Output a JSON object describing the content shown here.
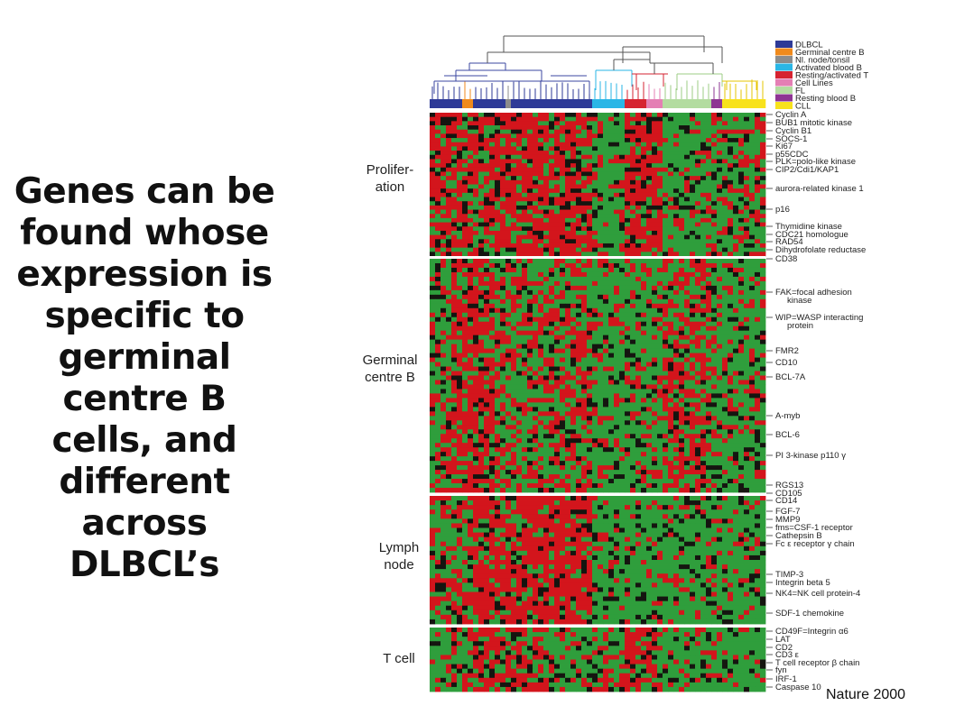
{
  "caption": "Genes can be found whose expression is specific to germinal centre B cells, and different across DLBCL’s",
  "credit": "Nature 2000",
  "legend": [
    {
      "label": "DLBCL",
      "color": "#2e3a97"
    },
    {
      "label": "Germinal centre B",
      "color": "#f08a1c"
    },
    {
      "label": "Nl. node/tonsil",
      "color": "#8c8c8c"
    },
    {
      "label": "Activated blood B",
      "color": "#2ab6e6"
    },
    {
      "label": "Resting/activated T",
      "color": "#d62331"
    },
    {
      "label": "Cell Lines",
      "color": "#e47fb4"
    },
    {
      "label": "FL",
      "color": "#b3dca0"
    },
    {
      "label": "Resting blood B",
      "color": "#8e3593"
    },
    {
      "label": "CLL",
      "color": "#f8e21c"
    }
  ],
  "sections": [
    {
      "label": "Prolifer-\nation",
      "type": "prolif"
    },
    {
      "label": "Germinal\ncentre B",
      "type": "gcb"
    },
    {
      "label": "Lymph\nnode",
      "type": "lymph"
    },
    {
      "label": "T cell",
      "type": "tcell"
    }
  ],
  "genes": [
    "Cyclin A",
    "BUB1 mitotic kinase",
    "Cyclin B1",
    "SOCS-1",
    "Ki67",
    "p55CDC",
    "PLK=polo-like kinase",
    "CIP2/Cdi1/KAP1",
    "aurora-related kinase 1",
    "p16",
    "Thymidine kinase",
    "CDC21 homologue",
    "RAD54",
    "Dihydrofolate reductase",
    "CD38",
    "FAK=focal adhesion\n       kinase",
    "WIP=WASP interacting\n       protein",
    "FMR2",
    "CD10",
    "BCL-7A",
    "A-myb",
    "BCL-6",
    "PI 3-kinase p110 γ",
    "RGS13",
    "CD105",
    "CD14",
    "FGF-7",
    "MMP9",
    "fms=CSF-1 receptor",
    "Cathepsin B",
    "Fc ε receptor γ chain",
    "TIMP-3",
    "Integrin beta 5",
    "NK4=NK cell protein-4",
    "SDF-1 chemokine",
    "CD49F=Integrin α6",
    "LAT",
    "CD2",
    "CD3 ε",
    "T cell receptor β chain",
    "fyn",
    "IRF-1",
    "Caspase 10"
  ],
  "heatmap_colors": {
    "red": "#d3151c",
    "green": "#2f9e3c",
    "black": "#151510"
  }
}
